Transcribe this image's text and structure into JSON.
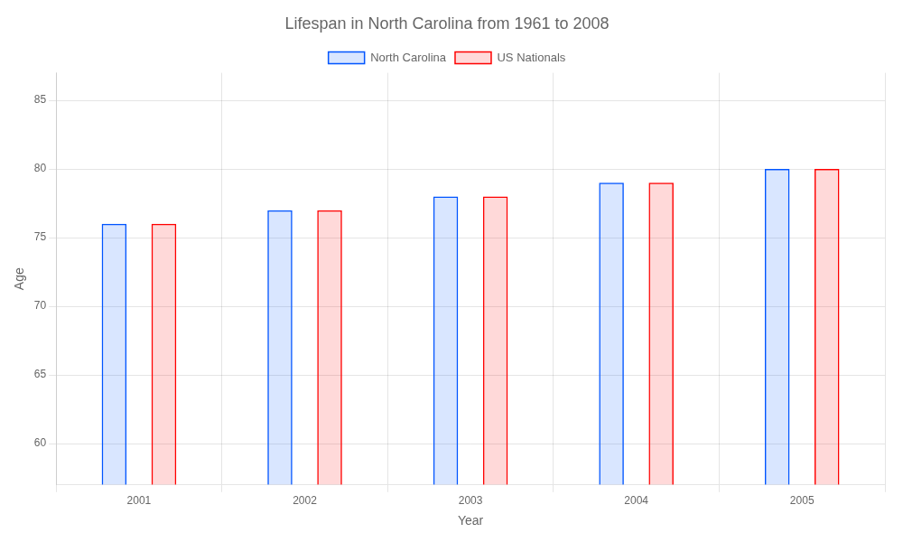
{
  "chart_data": {
    "type": "bar",
    "title": "Lifespan in North Carolina from 1961 to 2008",
    "x_label": "Year",
    "y_label": "Age",
    "categories": [
      "2001",
      "2002",
      "2003",
      "2004",
      "2005"
    ],
    "series": [
      {
        "name": "North Carolina",
        "color": "#0055ff",
        "values": [
          76,
          77,
          78,
          79,
          80
        ]
      },
      {
        "name": "US Nationals",
        "color": "#ff0000",
        "values": [
          76,
          77,
          78,
          79,
          80
        ]
      }
    ],
    "ylim": [
      57,
      87
    ],
    "yticks": [
      60,
      65,
      70,
      75,
      80,
      85
    ],
    "grid": true,
    "legend": "upper center"
  }
}
